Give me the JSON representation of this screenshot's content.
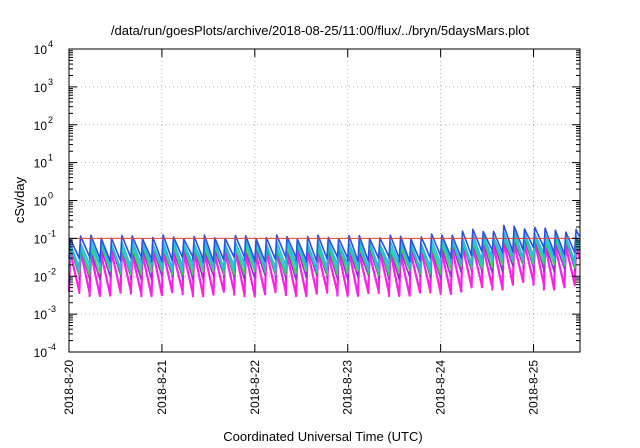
{
  "chart_data": {
    "type": "line",
    "title": "/data/run/goesPlots/archive/2018-08-25/11:00/flux/../bryn/5daysMars.plot",
    "xlabel": "Coordinated Universal Time (UTC)",
    "ylabel": "cSv/day",
    "y_scale": "log",
    "ylim": [
      0.0001,
      10000
    ],
    "y_ticks": [
      {
        "base": "10",
        "exp": "-4",
        "value": 0.0001
      },
      {
        "base": "10",
        "exp": "-3",
        "value": 0.001
      },
      {
        "base": "10",
        "exp": "-2",
        "value": 0.01
      },
      {
        "base": "10",
        "exp": "-1",
        "value": 0.1
      },
      {
        "base": "10",
        "exp": "0",
        "value": 1
      },
      {
        "base": "10",
        "exp": "1",
        "value": 10
      },
      {
        "base": "10",
        "exp": "2",
        "value": 100
      },
      {
        "base": "10",
        "exp": "3",
        "value": 1000
      },
      {
        "base": "10",
        "exp": "4",
        "value": 10000
      }
    ],
    "xlim": [
      "2018-8-20",
      "2018-8-25 12:00"
    ],
    "x_ticks": [
      "2018-8-20",
      "2018-8-21",
      "2018-8-22",
      "2018-8-23",
      "2018-8-24",
      "2018-8-25"
    ],
    "grid": true,
    "reference_line": {
      "value": 0.1,
      "color": "#e8403a"
    },
    "pattern": {
      "oscillations_per_day": 9,
      "description": "sawtooth: sharp rise to a peak, slow decay to a trough"
    },
    "series": [
      {
        "color": "#2b4fe0",
        "peak_range": [
          0.08,
          0.15
        ],
        "trough_range": [
          0.02,
          0.04
        ]
      },
      {
        "color": "#28b8e6",
        "peak_range": [
          0.06,
          0.11
        ],
        "trough_range": [
          0.012,
          0.03
        ]
      },
      {
        "color": "#1ad0b8",
        "peak_range": [
          0.05,
          0.09
        ],
        "trough_range": [
          0.01,
          0.025
        ]
      },
      {
        "color": "#3bd15a",
        "peak_range": [
          0.045,
          0.08
        ],
        "trough_range": [
          0.008,
          0.02
        ]
      },
      {
        "color": "#9b2fd4",
        "peak_range": [
          0.04,
          0.07
        ],
        "trough_range": [
          0.006,
          0.015
        ]
      },
      {
        "color": "#ff1fe6",
        "peak_range": [
          0.03,
          0.06
        ],
        "trough_range": [
          0.002,
          0.006
        ]
      }
    ]
  }
}
